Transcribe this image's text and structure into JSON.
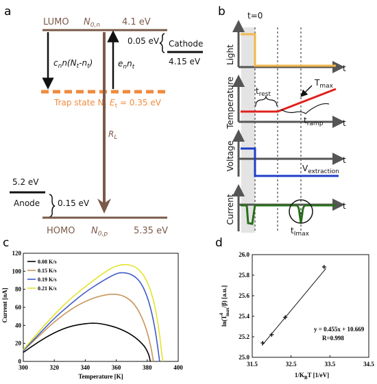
{
  "panel_a": {
    "label": "a",
    "lumo_label": "LUMO",
    "n0n_main": "N",
    "n0n_sub": "0,n",
    "lumo_energy": "4.1 eV",
    "cathode_gap": "0.05 eV",
    "cathode_label": "Cathode",
    "cathode_energy": "4.15 eV",
    "capture_label": "c",
    "capture_sub": "n",
    "capture_rest": "n(N",
    "capture_sub2": "t",
    "capture_rest2": "-n",
    "capture_sub3": "t",
    "capture_end": ")",
    "emission_label": "e",
    "emission_sub": "n",
    "emission_n": "n",
    "emission_sub2": "t",
    "trap_label": "Trap state N",
    "trap_sub": "t",
    "trap_energy_label": "E",
    "trap_energy_sub": "t",
    "trap_energy_value": " = 0.35 eV",
    "rl_label": "R",
    "rl_sub": "L",
    "anode_energy": "5.2 eV",
    "anode_label": "Anode",
    "anode_gap": "0.15 eV",
    "homo_label": "HOMO",
    "n0p_main": "N",
    "n0p_sub": "0,p",
    "homo_energy": "5.35 eV",
    "colors": {
      "level": "#7a5a4a",
      "trap": "#f08a3c",
      "black": "#111111"
    }
  },
  "panel_b": {
    "label": "b",
    "t0_label": "t=0",
    "rows": [
      {
        "ylabel": "Light",
        "xlabel": "t"
      },
      {
        "ylabel": "Temperature",
        "xlabel": "t"
      },
      {
        "ylabel": "Voltage",
        "xlabel": "t"
      },
      {
        "ylabel": "Current",
        "xlabel": "t"
      }
    ],
    "t_rest": "t",
    "t_rest_sub": "rest",
    "t_max": "T",
    "t_max_sub": "max",
    "t_ramp": "t",
    "t_ramp_sub": "ramp",
    "v_extraction": "V",
    "v_extraction_sub": "extraction",
    "t_imax": "t",
    "t_imax_sub": "Imax",
    "colors": {
      "axis": "#555555",
      "light": "#f2b84b",
      "temp": "#e0201c",
      "voltage": "#1e3ec8",
      "current": "#2a6e1c"
    }
  },
  "panel_c": {
    "label": "c",
    "chart_data": {
      "type": "line",
      "xlabel": "Temperature [K]",
      "ylabel": "Current [nA]",
      "xlim": [
        300,
        400
      ],
      "ylim": [
        0,
        120
      ],
      "xticks": [
        "300",
        "320",
        "340",
        "360",
        "380",
        "400"
      ],
      "yticks": [
        "0",
        "20",
        "40",
        "60",
        "80",
        "100",
        "120"
      ],
      "legend_position": "top-left",
      "series": [
        {
          "name": "0.08 K/s",
          "color": "#000000",
          "x": [
            300,
            310,
            320,
            330,
            340,
            345,
            350,
            360,
            370,
            378,
            381,
            382
          ],
          "y": [
            10,
            22,
            32,
            39,
            42,
            42.5,
            42,
            38,
            30,
            18,
            8,
            0
          ]
        },
        {
          "name": "0.15 K/s",
          "color": "#c8955a",
          "x": [
            300,
            310,
            320,
            330,
            340,
            350,
            358,
            365,
            372,
            378,
            382,
            384
          ],
          "y": [
            12,
            28,
            44,
            57,
            67,
            73,
            75,
            73,
            64,
            44,
            20,
            0
          ]
        },
        {
          "name": "0.19 K/s",
          "color": "#3c5ac8",
          "x": [
            300,
            310,
            320,
            330,
            340,
            350,
            358,
            363,
            370,
            376,
            381,
            385,
            388
          ],
          "y": [
            12,
            30,
            48,
            63,
            77,
            88,
            96,
            99,
            97,
            88,
            68,
            38,
            0
          ]
        },
        {
          "name": "0.21 K/s",
          "color": "#e3e32a",
          "x": [
            300,
            310,
            320,
            330,
            340,
            350,
            358,
            365,
            372,
            378,
            383,
            387,
            390
          ],
          "y": [
            13,
            33,
            52,
            69,
            83,
            96,
            105,
            108,
            106,
            96,
            76,
            44,
            0
          ]
        }
      ]
    }
  },
  "panel_d": {
    "label": "d",
    "ylabel_prefix": "ln(T",
    "ylabel_sup": "4",
    "ylabel_sub": "max",
    "ylabel_suffix": "/β)   [a.u.]",
    "xlabel_main": "1/K",
    "xlabel_sub": "B",
    "xlabel_end": "T    [1/eV]",
    "fit_equation": "y = 0.455x + 10.669",
    "fit_r": "R=0.998",
    "chart_data": {
      "type": "scatter",
      "xlim": [
        31.5,
        34.5
      ],
      "ylim": [
        25.0,
        26.0
      ],
      "xticks": [
        "31.5",
        "32.5",
        "33.5",
        "34.5"
      ],
      "yticks": [
        "25.0",
        "25.2",
        "25.4",
        "25.6",
        "25.8",
        "26.0"
      ],
      "points": [
        {
          "x": 31.77,
          "y": 25.14
        },
        {
          "x": 32.0,
          "y": 25.22
        },
        {
          "x": 32.35,
          "y": 25.39
        },
        {
          "x": 33.35,
          "y": 25.88
        }
      ],
      "fit": {
        "slope": 0.455,
        "intercept": 10.669,
        "x_range": [
          31.75,
          33.4
        ]
      }
    }
  }
}
